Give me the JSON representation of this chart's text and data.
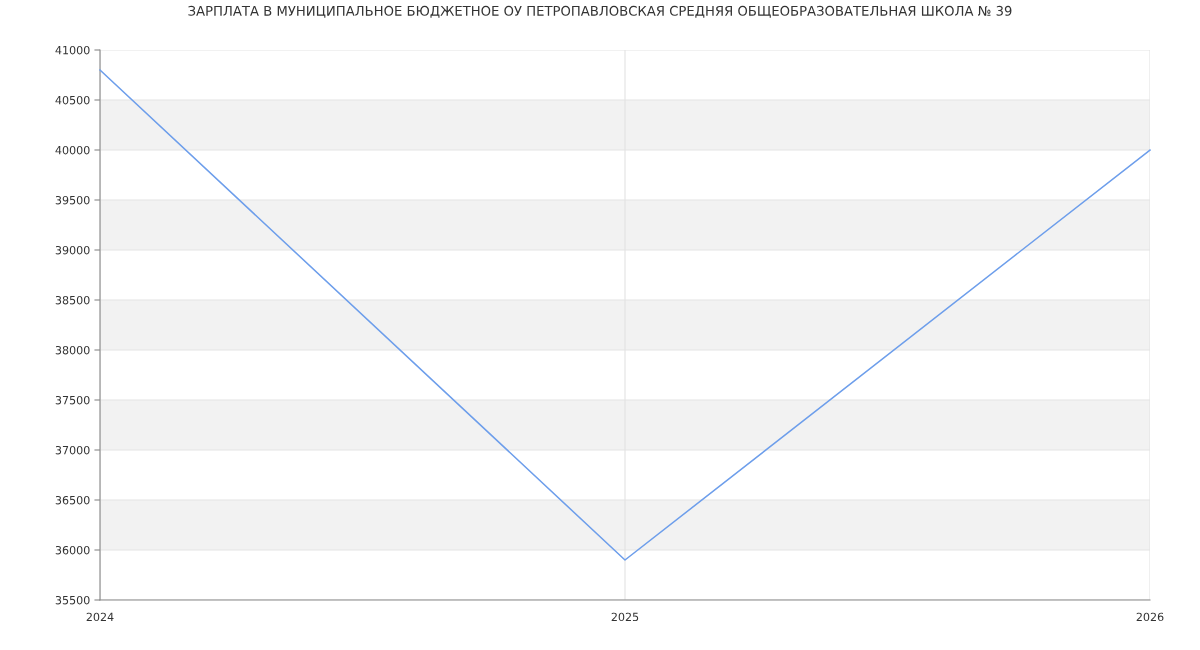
{
  "chart_data": {
    "type": "line",
    "title": "ЗАРПЛАТА В МУНИЦИПАЛЬНОЕ БЮДЖЕТНОЕ ОУ ПЕТРОПАВЛОВСКАЯ СРЕДНЯЯ ОБЩЕОБРАЗОВАТЕЛЬНАЯ ШКОЛА № 39",
    "x": [
      2024,
      2025,
      2026
    ],
    "series": [
      {
        "color": "#6d9eeb",
        "values": [
          40800,
          35900,
          40000
        ]
      }
    ],
    "xlim": [
      2024,
      2026
    ],
    "xticks": [
      2024,
      2025,
      2026
    ],
    "ylim": [
      35500,
      41000
    ],
    "yticks": [
      35500,
      36000,
      36500,
      37000,
      37500,
      38000,
      38500,
      39000,
      39500,
      40000,
      40500,
      41000
    ],
    "bands": [
      {
        "axis": "y",
        "from": 36000,
        "to": 36500,
        "color": "#f2f2f2"
      },
      {
        "axis": "y",
        "from": 37000,
        "to": 37500,
        "color": "#f2f2f2"
      },
      {
        "axis": "y",
        "from": 38000,
        "to": 38500,
        "color": "#f2f2f2"
      },
      {
        "axis": "y",
        "from": 39000,
        "to": 39500,
        "color": "#f2f2f2"
      },
      {
        "axis": "y",
        "from": 40000,
        "to": 40500,
        "color": "#f2f2f2"
      }
    ],
    "grid": true,
    "marker": "none",
    "line_style": "solid"
  }
}
